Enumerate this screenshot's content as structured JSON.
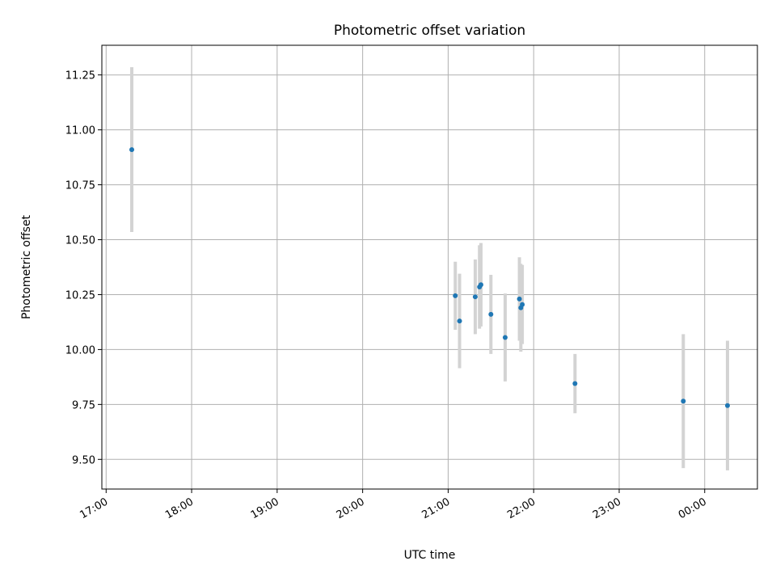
{
  "chart_data": {
    "type": "scatter",
    "title": "Photometric offset variation",
    "xlabel": "UTC time",
    "ylabel": "Photometric offset",
    "x_axis_type": "time",
    "x_reference_date": "",
    "xlim": [
      "16:57",
      "00:37"
    ],
    "ylim": [
      9.365,
      11.385
    ],
    "xticks": [
      "17:00",
      "18:00",
      "19:00",
      "20:00",
      "21:00",
      "22:00",
      "23:00",
      "00:00"
    ],
    "yticks": [
      9.5,
      9.75,
      10.0,
      10.25,
      10.5,
      10.75,
      11.0,
      11.25
    ],
    "ytick_labels": [
      "9.50",
      "9.75",
      "10.00",
      "10.25",
      "10.50",
      "10.75",
      "11.00",
      "11.25"
    ],
    "grid": true,
    "legend": "none",
    "colors": {
      "points": "#1f77b4",
      "errorbars": "#d3d3d3",
      "grid": "#b0b0b0"
    },
    "points": [
      {
        "time": "17:18",
        "y": 10.91,
        "yerr": 0.375
      },
      {
        "time": "21:05",
        "y": 10.245,
        "yerr": 0.155
      },
      {
        "time": "21:08",
        "y": 10.13,
        "yerr": 0.215
      },
      {
        "time": "21:19",
        "y": 10.24,
        "yerr": 0.17
      },
      {
        "time": "21:22",
        "y": 10.285,
        "yerr": 0.19
      },
      {
        "time": "21:23",
        "y": 10.295,
        "yerr": 0.19
      },
      {
        "time": "21:30",
        "y": 10.16,
        "yerr": 0.18
      },
      {
        "time": "21:40",
        "y": 10.055,
        "yerr": 0.2
      },
      {
        "time": "21:50",
        "y": 10.23,
        "yerr": 0.19
      },
      {
        "time": "21:51",
        "y": 10.19,
        "yerr": 0.2
      },
      {
        "time": "21:52",
        "y": 10.205,
        "yerr": 0.18
      },
      {
        "time": "22:29",
        "y": 9.845,
        "yerr": 0.135
      },
      {
        "time": "23:45",
        "y": 9.765,
        "yerr": 0.305
      },
      {
        "time": "00:16",
        "y": 9.745,
        "yerr": 0.295
      }
    ]
  }
}
